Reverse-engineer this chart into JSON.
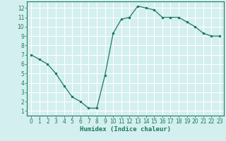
{
  "x": [
    0,
    1,
    2,
    3,
    4,
    5,
    6,
    7,
    8,
    9,
    10,
    11,
    12,
    13,
    14,
    15,
    16,
    17,
    18,
    19,
    20,
    21,
    22,
    23
  ],
  "y": [
    7.0,
    6.5,
    6.0,
    5.0,
    3.7,
    2.5,
    2.0,
    1.3,
    1.3,
    4.8,
    9.3,
    10.8,
    11.0,
    12.2,
    12.0,
    11.8,
    11.0,
    11.0,
    11.0,
    10.5,
    10.0,
    9.3,
    9.0,
    9.0
  ],
  "title": "",
  "xlabel": "Humidex (Indice chaleur)",
  "ylabel": "",
  "xlim": [
    -0.5,
    23.5
  ],
  "ylim": [
    0.5,
    12.7
  ],
  "yticks": [
    1,
    2,
    3,
    4,
    5,
    6,
    7,
    8,
    9,
    10,
    11,
    12
  ],
  "xticks": [
    0,
    1,
    2,
    3,
    4,
    5,
    6,
    7,
    8,
    9,
    10,
    11,
    12,
    13,
    14,
    15,
    16,
    17,
    18,
    19,
    20,
    21,
    22,
    23
  ],
  "line_color": "#1a7a5e",
  "marker_color": "#1a7a5e",
  "bg_color": "#d4efef",
  "grid_color": "#ffffff",
  "axis_color": "#1a7a5e",
  "tick_fontsize": 5.5,
  "xlabel_fontsize": 6.5
}
